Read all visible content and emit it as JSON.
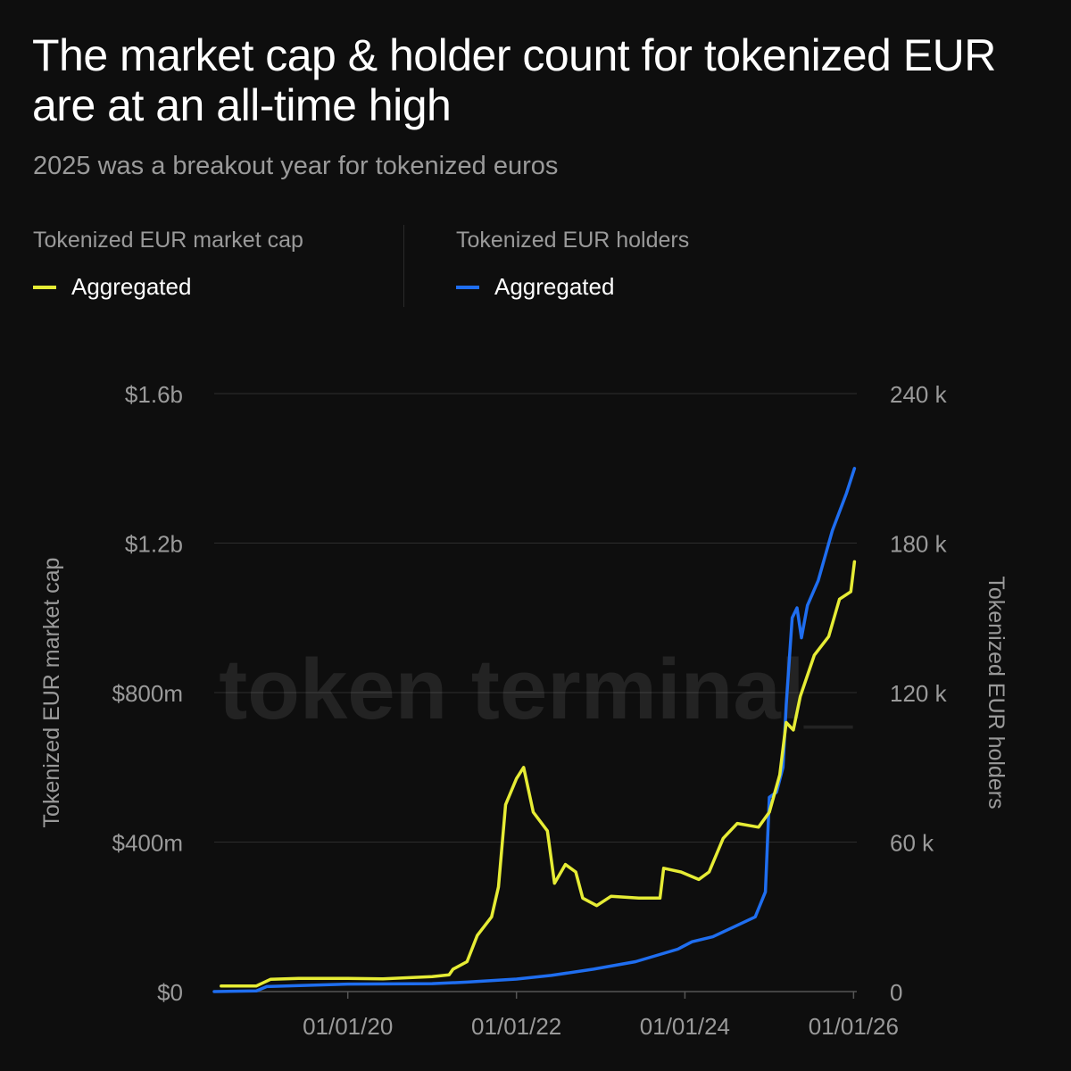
{
  "header": {
    "title": "The market cap & holder count for tokenized EUR are at an all-time high",
    "subtitle": "2025 was a breakout year for tokenized euros"
  },
  "legend": {
    "left": {
      "heading": "Tokenized EUR market cap",
      "item": "Aggregated",
      "color": "#e6ec35"
    },
    "right": {
      "heading": "Tokenized EUR holders",
      "item": "Aggregated",
      "color": "#1f6ef0"
    }
  },
  "watermark": "token terminal_",
  "chart_data": {
    "type": "line",
    "x_axis": {
      "ticks": [
        "01/01/20",
        "01/01/22",
        "01/01/24",
        "01/01/26"
      ],
      "tick_dates": [
        "2020-01-01",
        "2022-01-01",
        "2024-01-01",
        "2026-01-01"
      ],
      "range": [
        "2018-06-01",
        "2026-01-15"
      ]
    },
    "y_axis_left": {
      "label": "Tokenized EUR market cap",
      "ticks": [
        "$0",
        "$400m",
        "$800m",
        "$1.2b",
        "$1.6b"
      ],
      "range": [
        0,
        1600000000
      ]
    },
    "y_axis_right": {
      "label": "Tokenized EUR holders",
      "ticks": [
        "0",
        "60 k",
        "120 k",
        "180 k",
        "240 k"
      ],
      "range": [
        0,
        240000
      ]
    },
    "grid": true,
    "series": [
      {
        "name": "Aggregated",
        "axis": "left",
        "color": "#e6ec35",
        "points": [
          [
            "2018-07-01",
            15000000
          ],
          [
            "2018-12-01",
            15000000
          ],
          [
            "2019-02-01",
            33000000
          ],
          [
            "2019-06-01",
            35000000
          ],
          [
            "2020-01-01",
            35000000
          ],
          [
            "2020-06-01",
            34000000
          ],
          [
            "2021-01-01",
            40000000
          ],
          [
            "2021-03-15",
            45000000
          ],
          [
            "2021-04-01",
            60000000
          ],
          [
            "2021-06-01",
            80000000
          ],
          [
            "2021-07-15",
            150000000
          ],
          [
            "2021-09-15",
            200000000
          ],
          [
            "2021-10-15",
            280000000
          ],
          [
            "2021-11-15",
            500000000
          ],
          [
            "2022-01-01",
            570000000
          ],
          [
            "2022-02-01",
            600000000
          ],
          [
            "2022-03-15",
            480000000
          ],
          [
            "2022-05-15",
            430000000
          ],
          [
            "2022-06-15",
            290000000
          ],
          [
            "2022-08-01",
            340000000
          ],
          [
            "2022-09-15",
            320000000
          ],
          [
            "2022-10-15",
            250000000
          ],
          [
            "2022-12-15",
            230000000
          ],
          [
            "2023-02-15",
            255000000
          ],
          [
            "2023-06-15",
            250000000
          ],
          [
            "2023-09-15",
            250000000
          ],
          [
            "2023-10-01",
            330000000
          ],
          [
            "2023-12-15",
            320000000
          ],
          [
            "2024-03-01",
            300000000
          ],
          [
            "2024-04-15",
            320000000
          ],
          [
            "2024-06-15",
            410000000
          ],
          [
            "2024-08-15",
            450000000
          ],
          [
            "2024-11-15",
            440000000
          ],
          [
            "2025-01-01",
            480000000
          ],
          [
            "2025-02-15",
            580000000
          ],
          [
            "2025-03-15",
            720000000
          ],
          [
            "2025-04-15",
            700000000
          ],
          [
            "2025-05-15",
            790000000
          ],
          [
            "2025-07-15",
            900000000
          ],
          [
            "2025-09-15",
            950000000
          ],
          [
            "2025-11-01",
            1050000000
          ],
          [
            "2025-12-20",
            1070000000
          ],
          [
            "2026-01-05",
            1150000000
          ]
        ]
      },
      {
        "name": "Aggregated",
        "axis": "right",
        "color": "#1f6ef0",
        "points": [
          [
            "2018-06-01",
            0
          ],
          [
            "2018-12-01",
            300
          ],
          [
            "2019-01-15",
            2000
          ],
          [
            "2020-01-01",
            3000
          ],
          [
            "2021-01-01",
            3200
          ],
          [
            "2021-06-01",
            3800
          ],
          [
            "2022-01-01",
            5000
          ],
          [
            "2022-06-01",
            6500
          ],
          [
            "2022-12-01",
            9000
          ],
          [
            "2023-06-01",
            12000
          ],
          [
            "2023-12-01",
            17000
          ],
          [
            "2024-02-01",
            20000
          ],
          [
            "2024-05-01",
            22000
          ],
          [
            "2024-08-01",
            26000
          ],
          [
            "2024-11-01",
            30000
          ],
          [
            "2024-12-15",
            40000
          ],
          [
            "2025-01-01",
            78000
          ],
          [
            "2025-02-01",
            80000
          ],
          [
            "2025-03-01",
            90000
          ],
          [
            "2025-03-15",
            115000
          ],
          [
            "2025-04-10",
            150000
          ],
          [
            "2025-05-01",
            154000
          ],
          [
            "2025-05-20",
            142000
          ],
          [
            "2025-06-15",
            155000
          ],
          [
            "2025-08-01",
            165000
          ],
          [
            "2025-10-01",
            185000
          ],
          [
            "2025-12-01",
            200000
          ],
          [
            "2026-01-05",
            210000
          ]
        ]
      }
    ]
  }
}
